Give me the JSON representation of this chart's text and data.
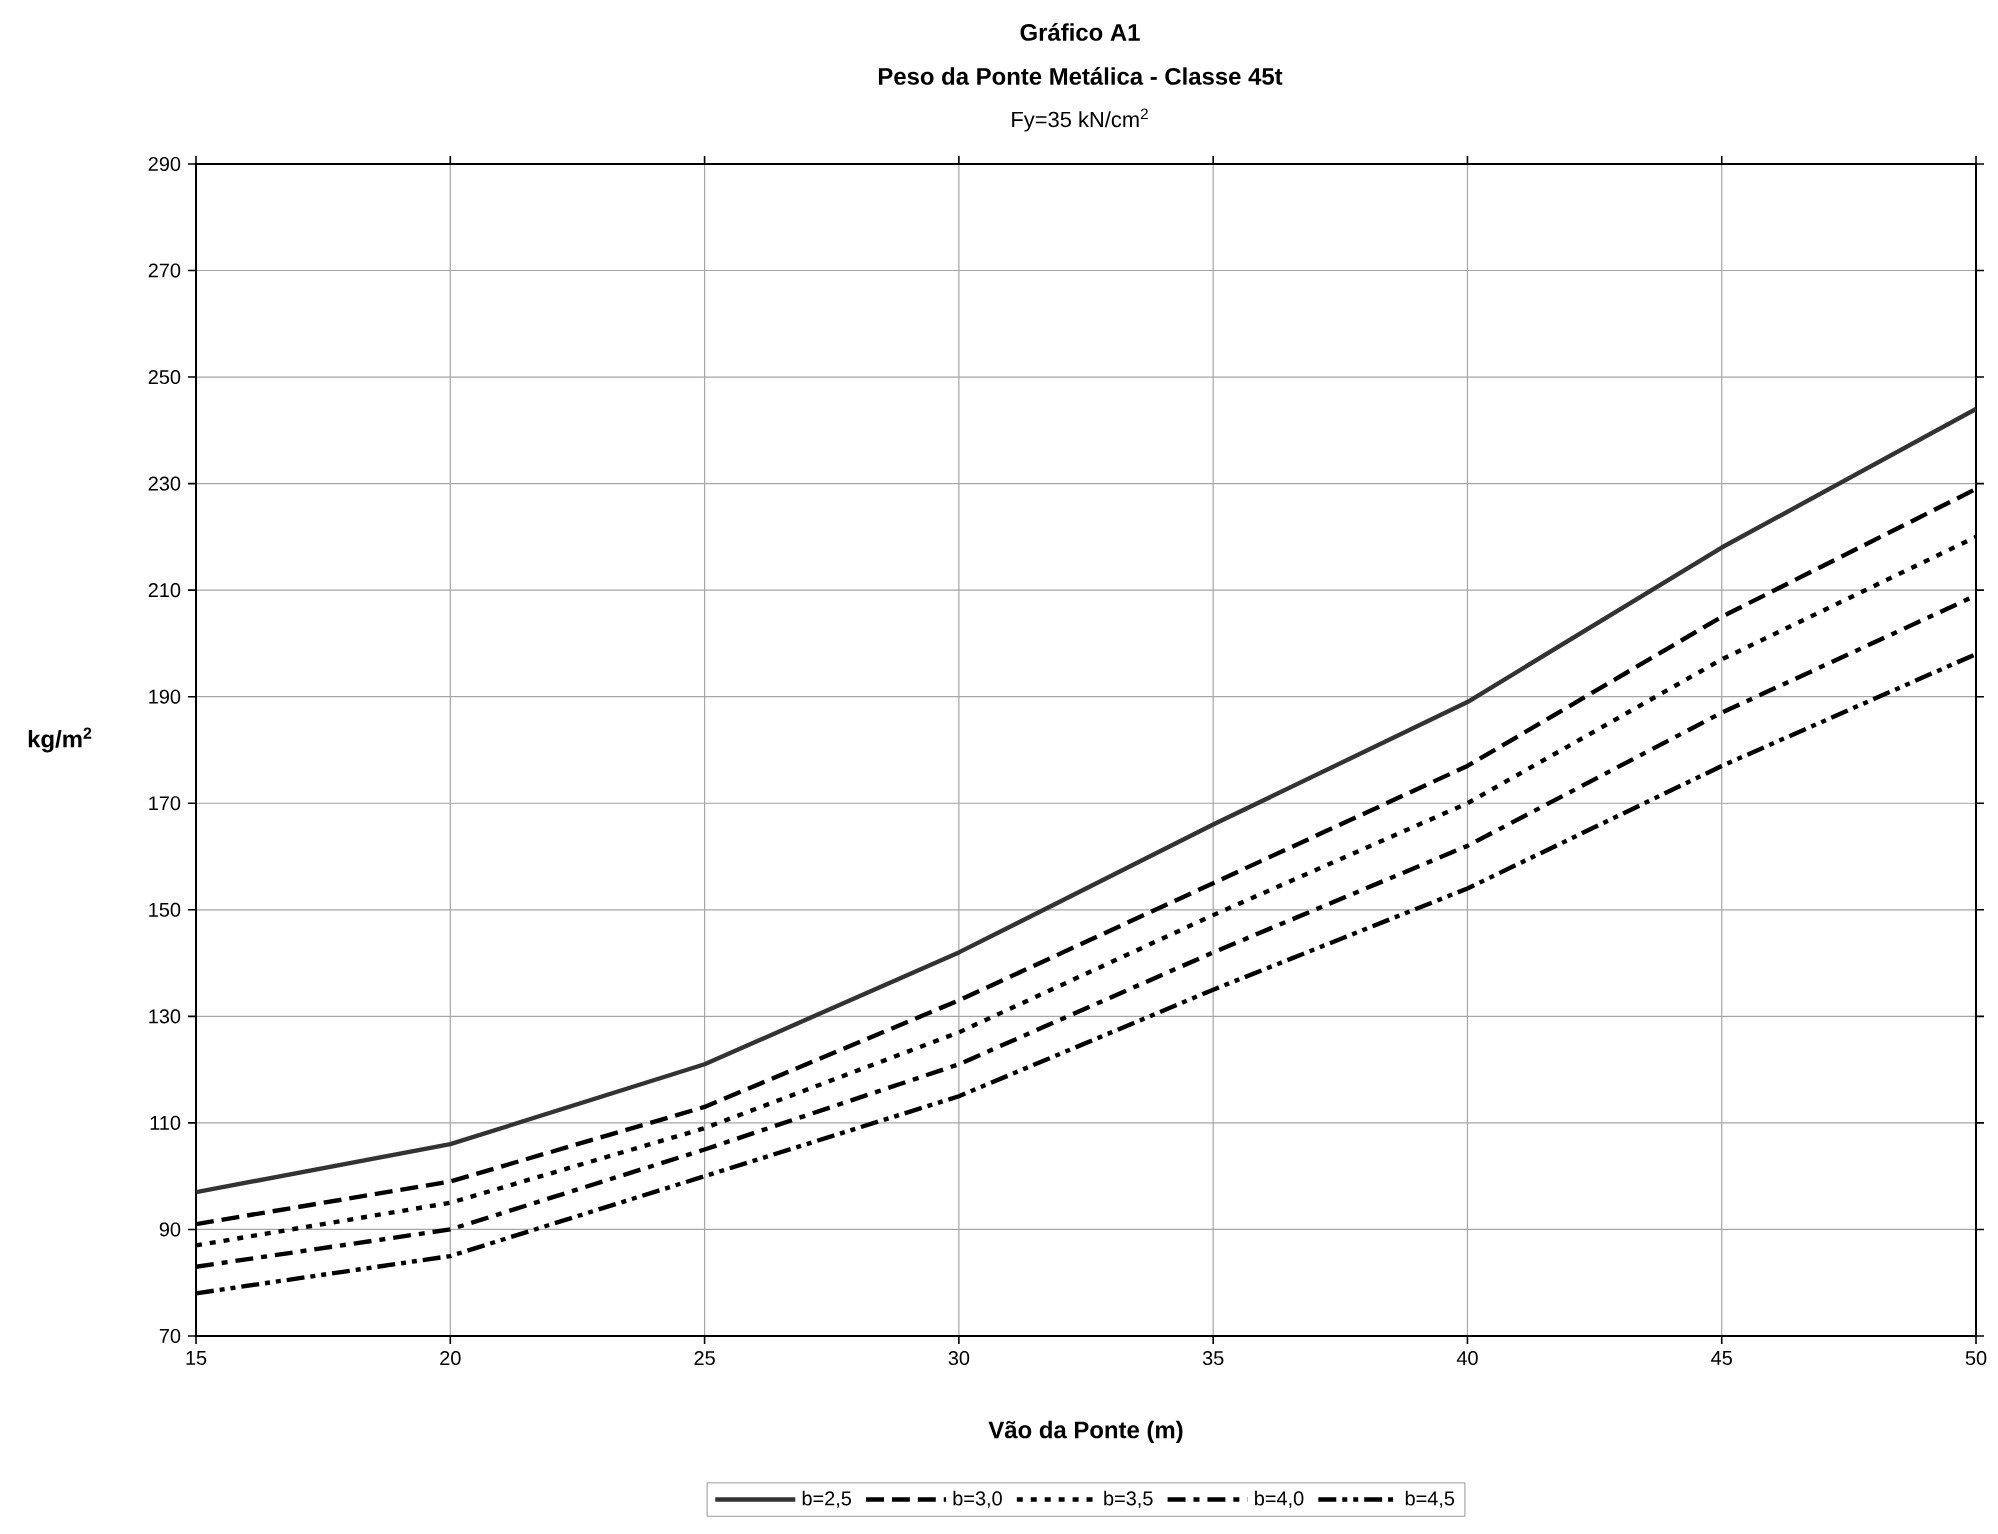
{
  "chart_data": {
    "type": "line",
    "title": "Gráfico A1",
    "subtitle": "Peso da Ponte Metálica - Classe 45t",
    "annotations": [
      "Fy=35 kN/cm$^{2}$"
    ],
    "xlabel": "Vão da Ponte (m)",
    "ylabel": "kg/m$^{2}$",
    "x": [
      15,
      20,
      25,
      30,
      35,
      40,
      45,
      50
    ],
    "series": [
      {
        "name": "b=2,5",
        "color": "#333333",
        "line_style": "solid",
        "values": [
          97,
          106,
          121,
          142,
          166,
          189,
          218,
          244
        ]
      },
      {
        "name": "b=3,0",
        "color": "#000000",
        "line_style": "dashed",
        "values": [
          91,
          99,
          113,
          133,
          155,
          177,
          205,
          229
        ]
      },
      {
        "name": "b=3,5",
        "color": "#000000",
        "line_style": "dotted",
        "values": [
          87,
          95,
          109,
          127,
          149,
          170,
          197,
          220
        ]
      },
      {
        "name": "b=4,0",
        "color": "#000000",
        "line_style": "dashdot",
        "values": [
          83,
          90,
          105,
          121,
          142,
          162,
          187,
          209
        ]
      },
      {
        "name": "b=4,5",
        "color": "#000000",
        "line_style": "dashdotdot",
        "values": [
          78,
          85,
          100,
          115,
          135,
          154,
          177,
          198
        ]
      }
    ],
    "xlim": [
      15,
      50
    ],
    "ylim": [
      70,
      290
    ],
    "xticks": [
      15,
      20,
      25,
      30,
      35,
      40,
      45,
      50
    ],
    "yticks": [
      70,
      90,
      110,
      130,
      150,
      170,
      190,
      210,
      230,
      250,
      270,
      290
    ],
    "grid": true,
    "legend": "bottom"
  }
}
